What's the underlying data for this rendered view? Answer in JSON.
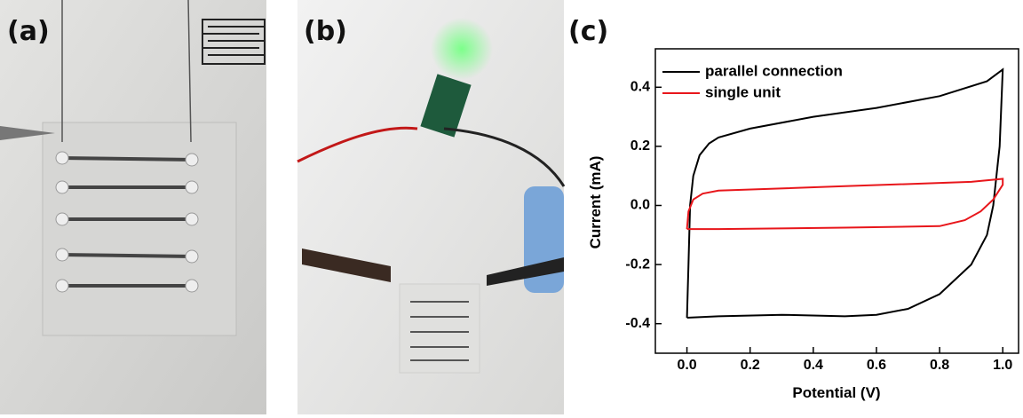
{
  "panels": [
    {
      "label": "(a)"
    },
    {
      "label": "(b)"
    }
  ],
  "chart_data": {
    "type": "line",
    "panel_label": "(c)",
    "x_label": "Potential (V)",
    "y_label": "Current (mA)",
    "xlim": [
      -0.1,
      1.05
    ],
    "ylim": [
      -0.5,
      0.53
    ],
    "xticks": [
      {
        "value": 0,
        "label": "0.0"
      },
      0.2,
      0.4,
      0.6,
      0.8,
      {
        "value": 1,
        "label": "1.0"
      }
    ],
    "yticks": [
      -0.4,
      -0.2,
      {
        "value": 0,
        "label": "0.0"
      },
      0.2,
      0.4
    ],
    "legend": "upper left",
    "series": [
      {
        "name": "parallel connection",
        "color": "#000000",
        "x": [
          0,
          0.005,
          0.01,
          0.02,
          0.04,
          0.07,
          0.1,
          0.2,
          0.4,
          0.6,
          0.8,
          0.95,
          1.0,
          0.99,
          0.97,
          0.95,
          0.9,
          0.8,
          0.7,
          0.6,
          0.5,
          0.3,
          0.1,
          0
        ],
        "values": [
          -0.38,
          -0.2,
          0,
          0.1,
          0.17,
          0.21,
          0.23,
          0.26,
          0.3,
          0.33,
          0.37,
          0.42,
          0.46,
          0.2,
          0,
          -0.1,
          -0.2,
          -0.3,
          -0.35,
          -0.37,
          -0.375,
          -0.37,
          -0.375,
          -0.38
        ]
      },
      {
        "name": "single unit",
        "color": "#e8161b",
        "x": [
          0,
          0.005,
          0.02,
          0.05,
          0.1,
          0.5,
          0.9,
          1.0,
          1.0,
          0.97,
          0.93,
          0.88,
          0.8,
          0.5,
          0.1,
          0
        ],
        "values": [
          -0.08,
          -0.02,
          0.02,
          0.04,
          0.05,
          0.065,
          0.08,
          0.09,
          0.07,
          0.02,
          -0.02,
          -0.05,
          -0.07,
          -0.075,
          -0.08,
          -0.08
        ]
      }
    ]
  }
}
